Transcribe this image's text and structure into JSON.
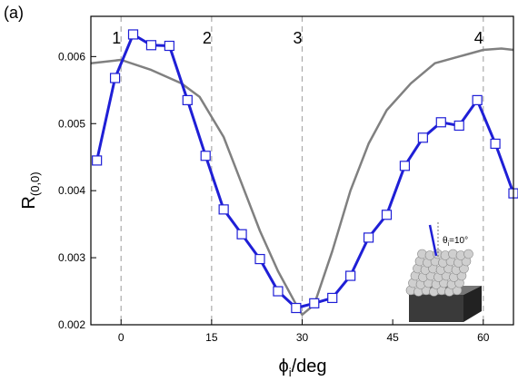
{
  "chart_data": {
    "type": "line",
    "panel_label": "(a)",
    "ylabel": "R",
    "ylabel_sub": "(0,0)",
    "xlabel": "ϕ",
    "xlabel_sub": "i",
    "xlabel_unit": "/deg",
    "xlim": [
      -5,
      65
    ],
    "ylim": [
      0.002,
      0.0066
    ],
    "xticks": [
      0,
      15,
      30,
      45,
      60
    ],
    "yticks": [
      0.002,
      0.003,
      0.004,
      0.005,
      0.006
    ],
    "vlines": [
      0,
      15,
      30,
      60
    ],
    "vline_labels": [
      "1",
      "2",
      "3",
      "4"
    ],
    "inset_label": "θ",
    "inset_label_sub": "i",
    "inset_label_value": "=10°",
    "series": [
      {
        "color": "#1f1fd6",
        "marker": "square",
        "x": [
          -4,
          -1,
          2,
          5,
          8,
          11,
          14,
          17,
          20,
          23,
          26,
          29,
          32,
          35,
          38,
          41,
          44,
          47,
          50,
          53,
          56,
          59,
          62,
          65
        ],
        "values": [
          0.00445,
          0.00568,
          0.00633,
          0.00617,
          0.00616,
          0.00535,
          0.00452,
          0.00372,
          0.00335,
          0.00298,
          0.0025,
          0.00225,
          0.00232,
          0.0024,
          0.00273,
          0.0033,
          0.00364,
          0.00437,
          0.00479,
          0.00502,
          0.00497,
          0.00535,
          0.0047,
          0.00396
        ]
      },
      {
        "color": "#808080",
        "marker": "none",
        "x": [
          -5,
          0,
          5,
          10,
          13,
          17,
          20,
          23,
          26,
          29,
          30,
          32,
          35,
          38,
          41,
          44,
          48,
          52,
          56,
          60,
          63,
          65
        ],
        "values": [
          0.0059,
          0.00595,
          0.0058,
          0.0056,
          0.0054,
          0.0048,
          0.0041,
          0.0034,
          0.0028,
          0.0023,
          0.00215,
          0.0023,
          0.0031,
          0.004,
          0.0047,
          0.0052,
          0.0056,
          0.0059,
          0.006,
          0.0061,
          0.00612,
          0.0061
        ]
      }
    ]
  }
}
